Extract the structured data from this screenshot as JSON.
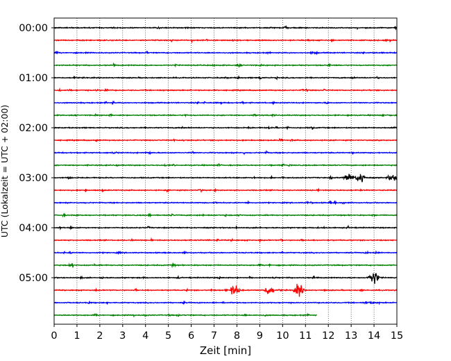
{
  "chart_data": {
    "type": "line",
    "title": "",
    "xlabel": "Zeit  [min]",
    "ylabel": "UTC (Lokalzeit = UTC + 02:00)",
    "xlim": [
      0,
      15
    ],
    "x_ticks": [
      "0",
      "1",
      "2",
      "3",
      "4",
      "5",
      "6",
      "7",
      "8",
      "9",
      "10",
      "11",
      "12",
      "13",
      "14",
      "15"
    ],
    "y_ticks": [
      "00:00",
      "01:00",
      "02:00",
      "03:00",
      "04:00",
      "05:00"
    ],
    "grid": "vertical-dotted",
    "trace_interval_min": 15,
    "colors": [
      "#000000",
      "#ff0000",
      "#0000ff",
      "#008000"
    ],
    "series": [
      {
        "start": "00:00",
        "color": "#000000",
        "end_min": 15
      },
      {
        "start": "00:15",
        "color": "#ff0000",
        "end_min": 15
      },
      {
        "start": "00:30",
        "color": "#0000ff",
        "end_min": 15
      },
      {
        "start": "00:45",
        "color": "#008000",
        "end_min": 15
      },
      {
        "start": "01:00",
        "color": "#000000",
        "end_min": 15
      },
      {
        "start": "01:15",
        "color": "#ff0000",
        "end_min": 15
      },
      {
        "start": "01:30",
        "color": "#0000ff",
        "end_min": 15
      },
      {
        "start": "01:45",
        "color": "#008000",
        "end_min": 15
      },
      {
        "start": "02:00",
        "color": "#000000",
        "end_min": 15
      },
      {
        "start": "02:15",
        "color": "#ff0000",
        "end_min": 15
      },
      {
        "start": "02:30",
        "color": "#0000ff",
        "end_min": 15
      },
      {
        "start": "02:45",
        "color": "#008000",
        "end_min": 15
      },
      {
        "start": "03:00",
        "color": "#000000",
        "end_min": 15,
        "events": [
          {
            "t": 12.9,
            "amp": 0.55
          },
          {
            "t": 13.4,
            "amp": 0.7
          },
          {
            "t": 14.8,
            "amp": 0.5
          }
        ]
      },
      {
        "start": "03:15",
        "color": "#ff0000",
        "end_min": 15
      },
      {
        "start": "03:30",
        "color": "#0000ff",
        "end_min": 15
      },
      {
        "start": "03:45",
        "color": "#008000",
        "end_min": 15
      },
      {
        "start": "04:00",
        "color": "#000000",
        "end_min": 15
      },
      {
        "start": "04:15",
        "color": "#ff0000",
        "end_min": 15
      },
      {
        "start": "04:30",
        "color": "#0000ff",
        "end_min": 15
      },
      {
        "start": "04:45",
        "color": "#008000",
        "end_min": 15
      },
      {
        "start": "05:00",
        "color": "#000000",
        "end_min": 15,
        "events": [
          {
            "t": 14.0,
            "amp": 1.1
          }
        ]
      },
      {
        "start": "05:15",
        "color": "#ff0000",
        "end_min": 15,
        "events": [
          {
            "t": 7.9,
            "amp": 0.75
          },
          {
            "t": 9.4,
            "amp": 0.7
          },
          {
            "t": 10.7,
            "amp": 0.85
          }
        ]
      },
      {
        "start": "05:30",
        "color": "#0000ff",
        "end_min": 15
      },
      {
        "start": "05:45",
        "color": "#008000",
        "end_min": 11.5
      }
    ]
  }
}
